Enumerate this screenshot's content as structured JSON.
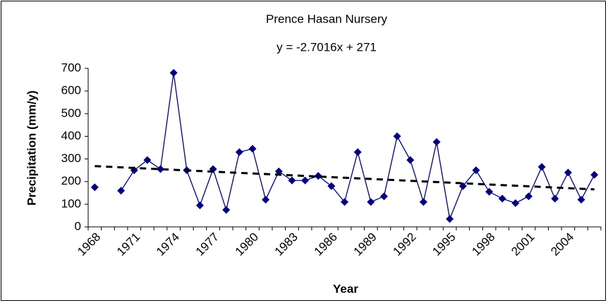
{
  "chart_data": {
    "type": "line",
    "title": "Prence Hasan Nursery",
    "x_label": "Year",
    "y_label": "Precipitation (mm/y)",
    "categories": [
      1968,
      null,
      null,
      1971,
      null,
      null,
      1974,
      null,
      null,
      1977,
      null,
      null,
      1980,
      null,
      null,
      1983,
      null,
      null,
      1986,
      null,
      null,
      1989,
      null,
      null,
      1992,
      null,
      null,
      1995,
      null,
      null,
      1998,
      null,
      null,
      2001,
      null,
      null,
      2004,
      null,
      null
    ],
    "series": [
      {
        "name": "Precipitation",
        "color": "#000080",
        "values": [
          175,
          null,
          160,
          250,
          295,
          255,
          680,
          250,
          95,
          255,
          75,
          330,
          345,
          120,
          245,
          205,
          205,
          225,
          180,
          110,
          330,
          110,
          135,
          400,
          295,
          110,
          375,
          35,
          180,
          250,
          155,
          125,
          105,
          135,
          265,
          125,
          240,
          120,
          230
        ]
      }
    ],
    "trendline": {
      "label": "y = -2.7016x + 271",
      "slope": -2.7016,
      "intercept": 271,
      "color": "#000000"
    },
    "ylim": [
      0,
      700
    ],
    "yticks": [
      0,
      100,
      200,
      300,
      400,
      500,
      600,
      700
    ],
    "grid": false
  }
}
